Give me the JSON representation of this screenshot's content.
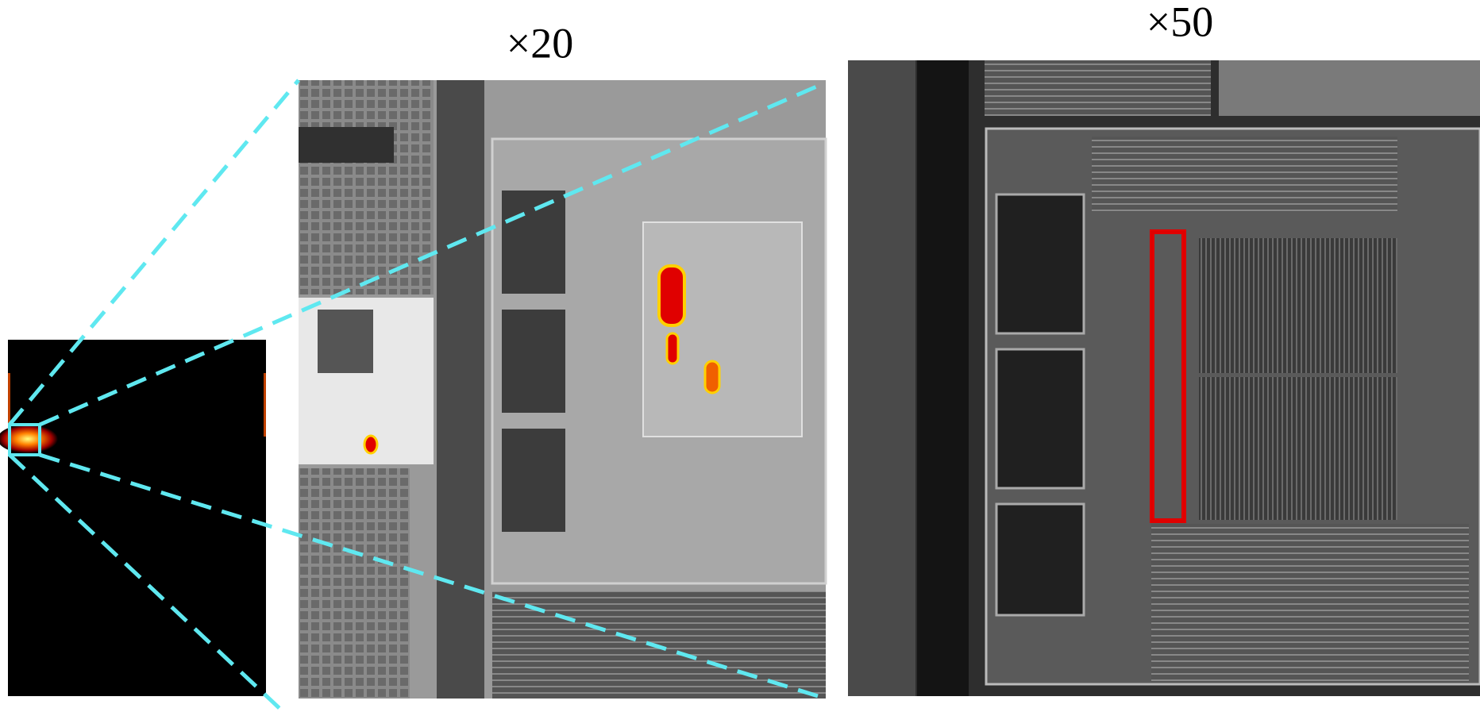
{
  "panels": [
    {
      "label": "×20"
    },
    {
      "label": "×50"
    }
  ]
}
